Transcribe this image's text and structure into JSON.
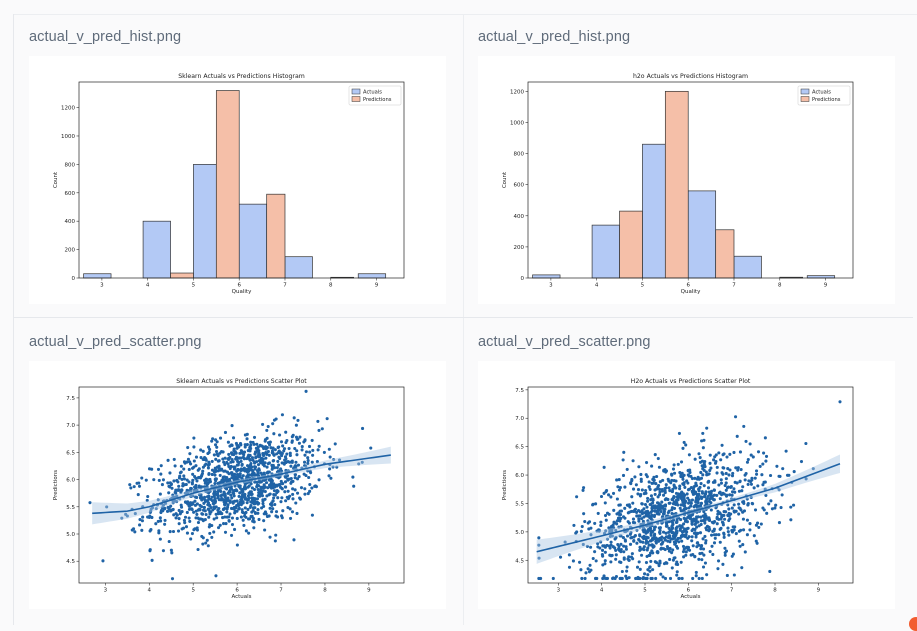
{
  "panels": [
    {
      "filename": "actual_v_pred_hist.png"
    },
    {
      "filename": "actual_v_pred_hist.png"
    },
    {
      "filename": "actual_v_pred_scatter.png"
    },
    {
      "filename": "actual_v_pred_scatter.png"
    }
  ],
  "chart_data": [
    {
      "type": "bar",
      "title": "Sklearn Actuals vs Predictions Histogram",
      "xlabel": "Quality",
      "ylabel": "Count",
      "xlim": [
        2.5,
        9.6
      ],
      "ylim": [
        0,
        1380
      ],
      "xticks": [
        "3",
        "4",
        "5",
        "6",
        "7",
        "8",
        "9"
      ],
      "yticks": [
        "0",
        "200",
        "400",
        "600",
        "800",
        "1000",
        "1200"
      ],
      "legend": "top-right",
      "colors": {
        "Actuals": "#b3c9f5",
        "Predictions": "#f5bfa8"
      },
      "series": [
        {
          "name": "Actuals",
          "bins": [
            [
              2.6,
              3.2,
              30
            ],
            [
              3.9,
              4.5,
              400
            ],
            [
              5.0,
              5.5,
              800
            ],
            [
              6.0,
              6.6,
              520
            ],
            [
              7.0,
              7.6,
              150
            ],
            [
              8.0,
              8.5,
              5
            ],
            [
              8.6,
              9.2,
              30
            ]
          ]
        },
        {
          "name": "Predictions",
          "bins": [
            [
              4.5,
              5.0,
              35
            ],
            [
              5.5,
              6.0,
              1320
            ],
            [
              6.6,
              7.0,
              590
            ]
          ]
        }
      ]
    },
    {
      "type": "bar",
      "title": "h2o Actuals vs Predictions Histogram",
      "xlabel": "Quality",
      "ylabel": "Count",
      "xlim": [
        2.5,
        9.6
      ],
      "ylim": [
        0,
        1260
      ],
      "xticks": [
        "3",
        "4",
        "5",
        "6",
        "7",
        "8",
        "9"
      ],
      "yticks": [
        "0",
        "200",
        "400",
        "600",
        "800",
        "1000",
        "1200"
      ],
      "legend": "top-right",
      "colors": {
        "Actuals": "#b3c9f5",
        "Predictions": "#f5bfa8"
      },
      "series": [
        {
          "name": "Actuals",
          "bins": [
            [
              2.6,
              3.2,
              20
            ],
            [
              3.9,
              4.5,
              340
            ],
            [
              5.0,
              5.5,
              860
            ],
            [
              6.0,
              6.6,
              560
            ],
            [
              7.0,
              7.6,
              140
            ],
            [
              8.0,
              8.5,
              5
            ],
            [
              8.6,
              9.2,
              15
            ]
          ]
        },
        {
          "name": "Predictions",
          "bins": [
            [
              4.5,
              5.0,
              430
            ],
            [
              5.5,
              6.0,
              1200
            ],
            [
              6.6,
              7.0,
              310
            ]
          ]
        }
      ]
    },
    {
      "type": "scatter",
      "title": "Sklearn Actuals vs Predictions Scatter Plot",
      "xlabel": "Actuals",
      "ylabel": "Predictions",
      "xlim": [
        2.4,
        9.8
      ],
      "ylim": [
        4.1,
        7.7
      ],
      "xticks": [
        "3",
        "4",
        "5",
        "6",
        "7",
        "8",
        "9"
      ],
      "yticks": [
        "4.5",
        "5.0",
        "5.5",
        "6.0",
        "6.5",
        "7.0",
        "7.5"
      ],
      "color": "#1f63a6",
      "points_count": 1300,
      "regression": {
        "x": [
          2.7,
          3.5,
          4.0,
          5.0,
          6.0,
          7.0,
          8.0,
          9.5
        ],
        "y": [
          5.38,
          5.42,
          5.5,
          5.75,
          5.95,
          6.1,
          6.28,
          6.45
        ]
      }
    },
    {
      "type": "scatter",
      "title": "H2o Actuals vs Predictions Scatter Plot",
      "xlabel": "Actuals",
      "ylabel": "Predictions",
      "xlim": [
        2.3,
        9.8
      ],
      "ylim": [
        4.1,
        7.55
      ],
      "xticks": [
        "3",
        "4",
        "5",
        "6",
        "7",
        "8",
        "9"
      ],
      "yticks": [
        "4.5",
        "5.0",
        "5.5",
        "6.0",
        "6.5",
        "7.0",
        "7.5"
      ],
      "color": "#1f63a6",
      "points_count": 1300,
      "regression": {
        "x": [
          2.5,
          4.0,
          5.0,
          6.0,
          7.0,
          8.0,
          9.5
        ],
        "y": [
          4.65,
          4.93,
          5.12,
          5.34,
          5.55,
          5.77,
          6.2
        ]
      }
    }
  ]
}
